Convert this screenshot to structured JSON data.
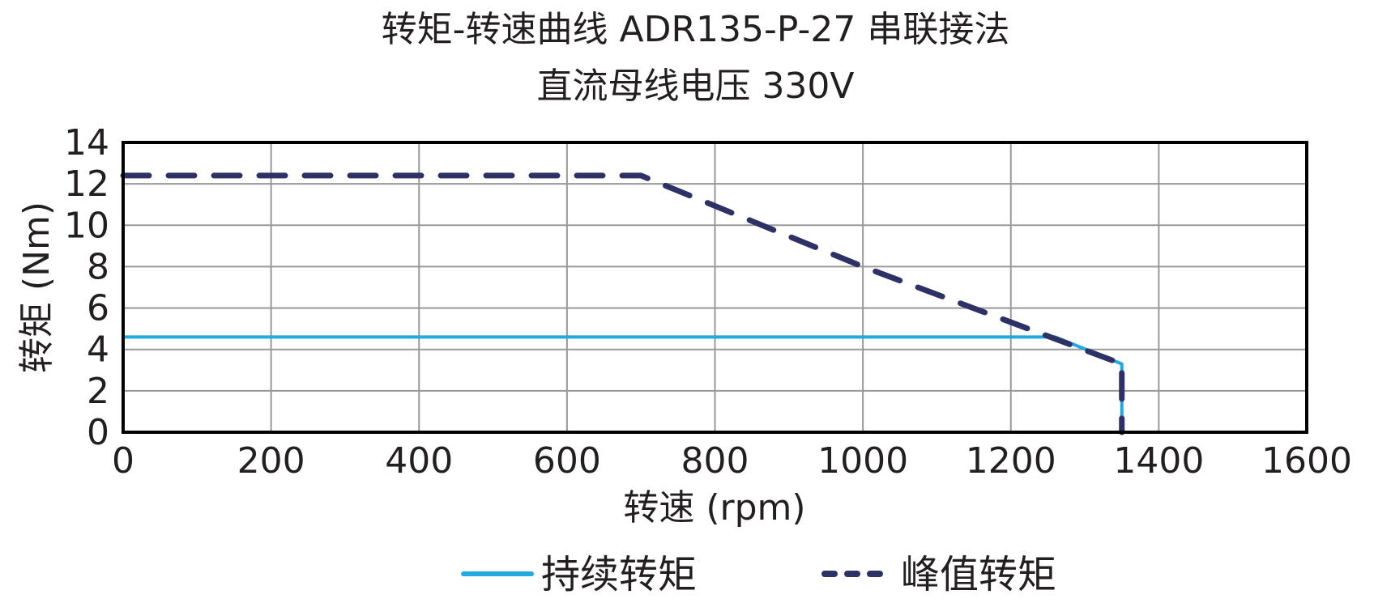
{
  "title": {
    "line1": "转矩-转速曲线 ADR135-P-27 串联接法",
    "line2": "直流母线电压 330V"
  },
  "colors": {
    "continuous": "#22a9de",
    "peak": "#2e3166",
    "grid": "#999999",
    "axis": "#000000",
    "text": "#231f20"
  },
  "chart_data": {
    "type": "line",
    "title": "转矩-转速曲线 ADR135-P-27 串联接法 / 直流母线电压 330V",
    "xlabel": "转速 (rpm)",
    "ylabel": "转矩 (Nm)",
    "xlim": [
      0,
      1600
    ],
    "ylim": [
      0,
      14
    ],
    "xticks": [
      0,
      200,
      400,
      600,
      800,
      1000,
      1200,
      1400,
      1600
    ],
    "yticks": [
      0,
      2,
      4,
      6,
      8,
      10,
      12,
      14
    ],
    "grid": true,
    "legend_position": "bottom",
    "series": [
      {
        "name": "持续转矩",
        "style": "solid",
        "color": "#22a9de",
        "x": [
          0,
          1260,
          1350,
          1350
        ],
        "y": [
          4.6,
          4.6,
          3.3,
          0
        ]
      },
      {
        "name": "峰值转矩",
        "style": "dashed",
        "color": "#2e3166",
        "x": [
          0,
          700,
          1000,
          1350,
          1350
        ],
        "y": [
          12.4,
          12.4,
          8.0,
          3.3,
          0
        ]
      }
    ]
  },
  "legend": {
    "items": [
      {
        "label": "持续转矩"
      },
      {
        "label": "峰值转矩"
      }
    ]
  }
}
